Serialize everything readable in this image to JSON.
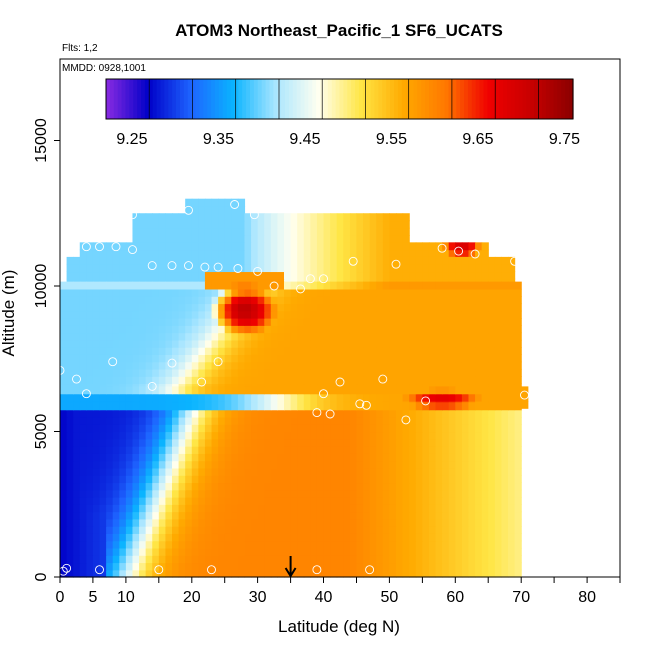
{
  "chart_data": {
    "type": "heatmap",
    "title": "ATOM3 Northeast_Pacific_1 SF6_UCATS",
    "subtitle_flights": "Flts: 1,2",
    "subtitle_dates": "MMDD: 0928,1001",
    "xlabel": "Latitude (deg N)",
    "ylabel": "Altitude (m)",
    "xlim": [
      0,
      85
    ],
    "ylim": [
      0,
      17800
    ],
    "x_ticks": [
      0,
      5,
      10,
      20,
      30,
      40,
      50,
      60,
      70,
      80
    ],
    "y_ticks": [
      0,
      5000,
      10000,
      15000
    ],
    "colorbar": {
      "min": 9.22,
      "max": 9.76,
      "tick_values": [
        9.25,
        9.35,
        9.45,
        9.55,
        9.65,
        9.75
      ],
      "tick_labels": [
        "9.25",
        "9.35",
        "9.45",
        "9.55",
        "9.65",
        "9.75"
      ],
      "palette": [
        "#8a2be2",
        "#0000c8",
        "#1e64ff",
        "#0ab4ff",
        "#aae6ff",
        "#fffff0",
        "#ffe646",
        "#ffaa00",
        "#ff7800",
        "#f00000",
        "#c80000",
        "#8b0000"
      ]
    },
    "arrow_marker_latitude": 35,
    "bands": [
      {
        "alt_min": 12500,
        "alt_max": 13000,
        "lat_min": 19,
        "lat_max": 28,
        "base": 9.4
      },
      {
        "alt_min": 11500,
        "alt_max": 12500,
        "lat_min": 11,
        "lat_max": 53,
        "base": 9.4
      },
      {
        "alt_min": 11000,
        "alt_max": 11500,
        "lat_min": 3,
        "lat_max": 65,
        "base": 9.4
      },
      {
        "alt_min": 10000,
        "alt_max": 11000,
        "lat_min": 1,
        "lat_max": 69,
        "base": 9.4
      },
      {
        "alt_min": 6400,
        "alt_max": 10000,
        "lat_min": 0,
        "lat_max": 70,
        "base": 9.42
      },
      {
        "alt_min": 5800,
        "alt_max": 6400,
        "lat_min": 0,
        "lat_max": 71,
        "base": 9.38
      },
      {
        "alt_min": 0,
        "alt_max": 5800,
        "lat_min": 0,
        "lat_max": 70,
        "base": 9.3
      }
    ],
    "hotspots": [
      {
        "lat": 61,
        "alt": 11300,
        "value": 9.7,
        "r_lat": 3,
        "r_alt": 300
      },
      {
        "lat": 28,
        "alt": 9200,
        "value": 9.72,
        "r_lat": 5,
        "r_alt": 900
      },
      {
        "lat": 58,
        "alt": 6100,
        "value": 9.68,
        "r_lat": 6,
        "r_alt": 350
      }
    ],
    "observations": [
      {
        "lat": 0.5,
        "alt": 200
      },
      {
        "lat": 1,
        "alt": 300
      },
      {
        "lat": 6,
        "alt": 250
      },
      {
        "lat": 15,
        "alt": 250
      },
      {
        "lat": 23,
        "alt": 250
      },
      {
        "lat": 39,
        "alt": 250
      },
      {
        "lat": 47,
        "alt": 250
      },
      {
        "lat": 4,
        "alt": 6300
      },
      {
        "lat": 2.5,
        "alt": 6800
      },
      {
        "lat": 14,
        "alt": 6550
      },
      {
        "lat": 21.5,
        "alt": 6700
      },
      {
        "lat": 0,
        "alt": 7100
      },
      {
        "lat": 8,
        "alt": 7400
      },
      {
        "lat": 17,
        "alt": 7350
      },
      {
        "lat": 24,
        "alt": 7400
      },
      {
        "lat": 39,
        "alt": 5650
      },
      {
        "lat": 41,
        "alt": 5600
      },
      {
        "lat": 45.5,
        "alt": 5950
      },
      {
        "lat": 46.5,
        "alt": 5900
      },
      {
        "lat": 52.5,
        "alt": 5400
      },
      {
        "lat": 55.5,
        "alt": 6050
      },
      {
        "lat": 40,
        "alt": 6300
      },
      {
        "lat": 42.5,
        "alt": 6700
      },
      {
        "lat": 49,
        "alt": 6800
      },
      {
        "lat": 70.5,
        "alt": 6250
      },
      {
        "lat": 14,
        "alt": 10700
      },
      {
        "lat": 17,
        "alt": 10700
      },
      {
        "lat": 19.5,
        "alt": 10700
      },
      {
        "lat": 22,
        "alt": 10650
      },
      {
        "lat": 24,
        "alt": 10650
      },
      {
        "lat": 27,
        "alt": 10600
      },
      {
        "lat": 30,
        "alt": 10500
      },
      {
        "lat": 32.5,
        "alt": 10000
      },
      {
        "lat": 36.5,
        "alt": 9900
      },
      {
        "lat": 38,
        "alt": 10250
      },
      {
        "lat": 40,
        "alt": 10250
      },
      {
        "lat": 44.5,
        "alt": 10850
      },
      {
        "lat": 51,
        "alt": 10750
      },
      {
        "lat": 58,
        "alt": 11300
      },
      {
        "lat": 60.5,
        "alt": 11200
      },
      {
        "lat": 63,
        "alt": 11100
      },
      {
        "lat": 69,
        "alt": 10850
      },
      {
        "lat": 3.5,
        "alt": 11950
      },
      {
        "lat": 11,
        "alt": 12450
      },
      {
        "lat": 19.5,
        "alt": 12600
      },
      {
        "lat": 26.5,
        "alt": 12800
      },
      {
        "lat": 29.5,
        "alt": 12450
      },
      {
        "lat": 4,
        "alt": 11350
      },
      {
        "lat": 6,
        "alt": 11350
      },
      {
        "lat": 8.5,
        "alt": 11350
      },
      {
        "lat": 11,
        "alt": 11250
      }
    ]
  }
}
